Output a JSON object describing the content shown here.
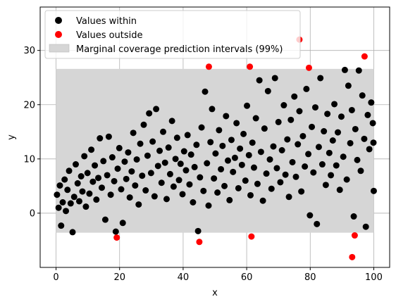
{
  "chart_data": {
    "type": "scatter",
    "title": "",
    "xlabel": "x",
    "ylabel": "y",
    "xlim": [
      -5,
      105
    ],
    "ylim": [
      -10,
      38
    ],
    "xticks": [
      0,
      20,
      40,
      60,
      80,
      100
    ],
    "yticks": [
      0,
      10,
      20,
      30
    ],
    "grid": true,
    "legend_position": "upper-left",
    "legend": [
      {
        "label": "Values within",
        "color": "#000000",
        "kind": "marker"
      },
      {
        "label": "Values outside",
        "color": "#ff0000",
        "kind": "marker"
      },
      {
        "label": "Marginal coverage prediction intervals (99%)",
        "color": "#d6d6d6",
        "kind": "patch"
      }
    ],
    "interval": {
      "x_range": [
        0,
        100
      ],
      "lower": -3.6,
      "upper": 26.6,
      "color": "#d6d6d6"
    },
    "series": [
      {
        "name": "Values within",
        "color": "#000000",
        "points": [
          [
            0.3,
            3.4
          ],
          [
            0.8,
            1.0
          ],
          [
            1.2,
            5.1
          ],
          [
            1.6,
            -2.3
          ],
          [
            2.1,
            2.0
          ],
          [
            2.7,
            6.2
          ],
          [
            3.1,
            0.4
          ],
          [
            3.6,
            4.3
          ],
          [
            4.1,
            7.8
          ],
          [
            4.6,
            1.8
          ],
          [
            5.2,
            -3.5
          ],
          [
            5.7,
            3.0
          ],
          [
            6.2,
            9.0
          ],
          [
            6.8,
            5.5
          ],
          [
            7.3,
            2.2
          ],
          [
            7.9,
            6.8
          ],
          [
            8.3,
            4.0
          ],
          [
            8.9,
            10.5
          ],
          [
            9.4,
            1.2
          ],
          [
            9.9,
            7.4
          ],
          [
            10.5,
            3.6
          ],
          [
            11.1,
            11.7
          ],
          [
            11.6,
            5.8
          ],
          [
            12.2,
            8.8
          ],
          [
            12.7,
            2.5
          ],
          [
            13.3,
            6.5
          ],
          [
            13.8,
            13.8
          ],
          [
            14.4,
            4.7
          ],
          [
            14.9,
            9.6
          ],
          [
            15.5,
            -1.2
          ],
          [
            16.1,
            7.0
          ],
          [
            16.6,
            14.1
          ],
          [
            17.2,
            3.4
          ],
          [
            17.7,
            10.3
          ],
          [
            18.3,
            5.9
          ],
          [
            18.8,
            -3.4
          ],
          [
            19.4,
            8.2
          ],
          [
            19.9,
            12.0
          ],
          [
            20.5,
            4.4
          ],
          [
            21.0,
            -1.8
          ],
          [
            21.6,
            9.5
          ],
          [
            22.1,
            6.3
          ],
          [
            22.7,
            11.2
          ],
          [
            23.2,
            2.9
          ],
          [
            23.8,
            7.7
          ],
          [
            24.3,
            14.8
          ],
          [
            24.9,
            5.1
          ],
          [
            25.4,
            9.9
          ],
          [
            26.0,
            1.6
          ],
          [
            26.5,
            12.8
          ],
          [
            27.1,
            6.9
          ],
          [
            27.6,
            16.3
          ],
          [
            28.2,
            4.2
          ],
          [
            28.8,
            10.6
          ],
          [
            29.3,
            18.4
          ],
          [
            29.9,
            7.4
          ],
          [
            30.4,
            13.2
          ],
          [
            31.0,
            3.1
          ],
          [
            31.5,
            19.2
          ],
          [
            32.1,
            8.7
          ],
          [
            32.6,
            11.5
          ],
          [
            33.2,
            5.6
          ],
          [
            33.7,
            15.0
          ],
          [
            34.3,
            9.3
          ],
          [
            34.8,
            2.6
          ],
          [
            35.4,
            12.1
          ],
          [
            35.9,
            7.2
          ],
          [
            36.5,
            17.0
          ],
          [
            37.0,
            4.9
          ],
          [
            37.6,
            10.0
          ],
          [
            38.1,
            13.9
          ],
          [
            38.7,
            6.1
          ],
          [
            39.2,
            9.1
          ],
          [
            39.8,
            3.5
          ],
          [
            40.3,
            11.4
          ],
          [
            40.9,
            7.9
          ],
          [
            41.4,
            14.4
          ],
          [
            42.0,
            5.3
          ],
          [
            42.5,
            10.8
          ],
          [
            43.1,
            2.0
          ],
          [
            43.6,
            8.5
          ],
          [
            44.2,
            12.6
          ],
          [
            44.7,
            -3.3
          ],
          [
            45.3,
            6.6
          ],
          [
            45.8,
            15.8
          ],
          [
            46.4,
            4.1
          ],
          [
            46.9,
            22.4
          ],
          [
            47.5,
            9.2
          ],
          [
            48.0,
            1.4
          ],
          [
            48.6,
            13.1
          ],
          [
            49.1,
            19.2
          ],
          [
            49.7,
            6.4
          ],
          [
            50.2,
            11.0
          ],
          [
            50.8,
            3.8
          ],
          [
            51.3,
            15.3
          ],
          [
            51.9,
            8.1
          ],
          [
            52.4,
            12.4
          ],
          [
            53.0,
            5.0
          ],
          [
            53.5,
            17.9
          ],
          [
            54.1,
            9.7
          ],
          [
            54.6,
            2.4
          ],
          [
            55.2,
            13.5
          ],
          [
            55.7,
            7.6
          ],
          [
            56.3,
            10.2
          ],
          [
            56.8,
            16.6
          ],
          [
            57.4,
            4.6
          ],
          [
            57.9,
            11.9
          ],
          [
            58.5,
            8.9
          ],
          [
            59.0,
            14.6
          ],
          [
            59.6,
            6.0
          ],
          [
            60.1,
            19.8
          ],
          [
            60.7,
            10.7
          ],
          [
            61.2,
            3.3
          ],
          [
            61.8,
            13.0
          ],
          [
            62.3,
            8.4
          ],
          [
            62.9,
            17.5
          ],
          [
            63.4,
            5.4
          ],
          [
            64.0,
            24.5
          ],
          [
            64.5,
            11.3
          ],
          [
            65.1,
            2.3
          ],
          [
            65.6,
            15.6
          ],
          [
            66.2,
            7.3
          ],
          [
            66.7,
            22.5
          ],
          [
            67.3,
            9.9
          ],
          [
            67.8,
            4.5
          ],
          [
            68.4,
            12.3
          ],
          [
            68.9,
            24.9
          ],
          [
            69.5,
            8.3
          ],
          [
            70.0,
            16.8
          ],
          [
            70.6,
            5.7
          ],
          [
            71.1,
            11.6
          ],
          [
            71.7,
            19.9
          ],
          [
            72.2,
            7.1
          ],
          [
            72.8,
            13.6
          ],
          [
            73.3,
            3.0
          ],
          [
            73.9,
            17.2
          ],
          [
            74.4,
            9.4
          ],
          [
            75.0,
            21.5
          ],
          [
            75.5,
            6.7
          ],
          [
            76.1,
            12.7
          ],
          [
            76.6,
            18.8
          ],
          [
            77.2,
            4.0
          ],
          [
            77.7,
            14.2
          ],
          [
            78.3,
            8.6
          ],
          [
            78.8,
            22.9
          ],
          [
            79.4,
            10.9
          ],
          [
            79.9,
            -0.4
          ],
          [
            80.5,
            15.9
          ],
          [
            81.0,
            7.5
          ],
          [
            81.6,
            19.5
          ],
          [
            82.1,
            -2.0
          ],
          [
            82.7,
            12.2
          ],
          [
            83.2,
            24.9
          ],
          [
            83.8,
            9.0
          ],
          [
            84.3,
            15.1
          ],
          [
            84.9,
            5.2
          ],
          [
            85.4,
            18.3
          ],
          [
            86.0,
            11.1
          ],
          [
            86.5,
            7.0
          ],
          [
            87.1,
            13.4
          ],
          [
            87.6,
            20.1
          ],
          [
            88.2,
            8.8
          ],
          [
            88.7,
            14.9
          ],
          [
            89.3,
            4.3
          ],
          [
            89.8,
            17.8
          ],
          [
            90.4,
            10.4
          ],
          [
            90.9,
            26.4
          ],
          [
            91.5,
            6.2
          ],
          [
            92.0,
            23.5
          ],
          [
            92.6,
            12.9
          ],
          [
            93.1,
            19.0
          ],
          [
            93.7,
            -0.6
          ],
          [
            94.2,
            15.5
          ],
          [
            94.8,
            9.8
          ],
          [
            95.3,
            26.3
          ],
          [
            95.9,
            7.8
          ],
          [
            96.4,
            21.7
          ],
          [
            97.0,
            13.7
          ],
          [
            97.5,
            -2.5
          ],
          [
            98.1,
            18.1
          ],
          [
            98.6,
            11.8
          ],
          [
            99.2,
            20.4
          ],
          [
            99.7,
            16.6
          ],
          [
            99.9,
            13.0
          ],
          [
            100.0,
            4.1
          ]
        ]
      },
      {
        "name": "Values outside",
        "color": "#ff0000",
        "points": [
          [
            19.1,
            -4.5
          ],
          [
            45.1,
            -5.3
          ],
          [
            48.1,
            27.0
          ],
          [
            61.0,
            27.0
          ],
          [
            61.5,
            -4.3
          ],
          [
            76.6,
            32.0
          ],
          [
            79.6,
            26.8
          ],
          [
            93.2,
            -8.1
          ],
          [
            94.0,
            -4.1
          ],
          [
            97.1,
            28.9
          ]
        ]
      }
    ]
  }
}
